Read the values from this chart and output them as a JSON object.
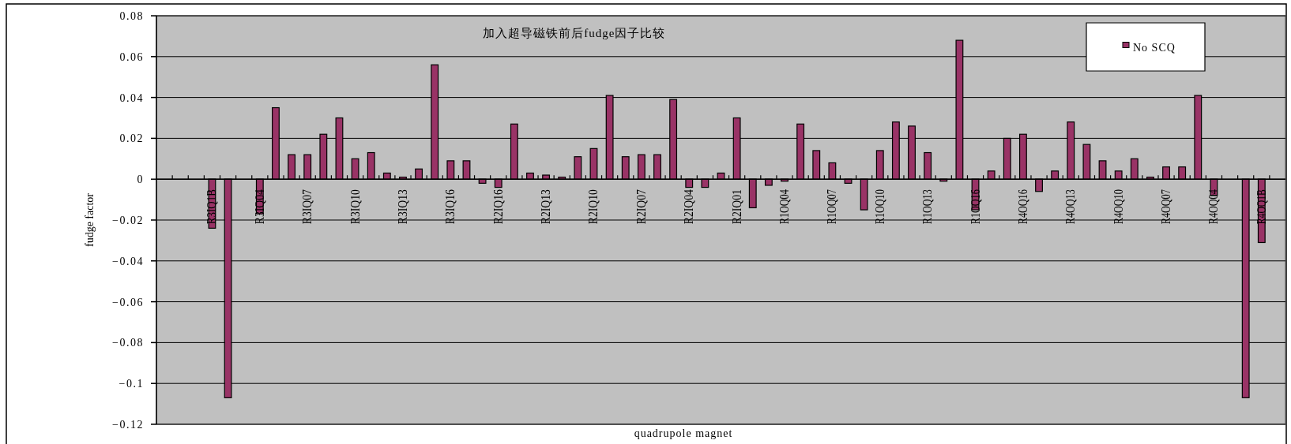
{
  "chart_data": {
    "type": "bar",
    "title": "加入超导磁铁前后fudge因子比较",
    "xlabel": "quadrupole magnet",
    "ylabel": "fudge factor",
    "categories": [
      null,
      null,
      null,
      "R3IQ1B",
      null,
      null,
      "R3IQ04",
      null,
      null,
      "R3IQ07",
      null,
      null,
      "R3IQ10",
      null,
      null,
      "R3IQ13",
      null,
      null,
      "R3IQ16",
      null,
      null,
      "R2IQ16",
      null,
      null,
      "R2IQ13",
      null,
      null,
      "R2IQ10",
      null,
      null,
      "R2IQ07",
      null,
      null,
      "R2IQ04",
      null,
      null,
      "R2IQ01",
      null,
      null,
      "R1OQ04",
      null,
      null,
      "R1OQ07",
      null,
      null,
      "R1OQ10",
      null,
      null,
      "R1OQ13",
      null,
      null,
      "R1OQ16",
      null,
      null,
      "R4OQ16",
      null,
      null,
      "R4OQ13",
      null,
      null,
      "R4OQ10",
      null,
      null,
      "R4OQ07",
      null,
      null,
      "R4OQ04",
      null,
      null,
      "R4OQ1B",
      null
    ],
    "series": [
      {
        "name": "No SCQ",
        "color": "#993366",
        "values": [
          null,
          null,
          null,
          -0.024,
          -0.107,
          null,
          -0.017,
          0.035,
          0.012,
          0.012,
          0.022,
          0.03,
          0.01,
          0.013,
          0.003,
          0.001,
          0.005,
          0.056,
          0.009,
          0.009,
          -0.002,
          -0.004,
          0.027,
          0.003,
          0.002,
          0.001,
          0.011,
          0.015,
          0.041,
          0.011,
          0.012,
          0.012,
          0.039,
          -0.004,
          -0.004,
          0.003,
          0.03,
          -0.014,
          -0.003,
          -0.001,
          0.027,
          0.014,
          0.008,
          -0.002,
          -0.015,
          0.014,
          0.028,
          0.026,
          0.013,
          -0.001,
          0.068,
          -0.015,
          0.004,
          0.02,
          0.022,
          -0.006,
          0.004,
          0.028,
          0.017,
          0.009,
          0.004,
          0.01,
          0.001,
          0.006,
          0.006,
          0.041,
          -0.008,
          null,
          -0.107,
          -0.031,
          null
        ]
      }
    ],
    "ylim": [
      -0.12,
      0.08
    ],
    "yticks": [
      -0.12,
      -0.1,
      -0.08,
      -0.06,
      -0.04,
      -0.02,
      0,
      0.02,
      0.04,
      0.06,
      0.08
    ],
    "grid": "y",
    "legend": "top right"
  }
}
